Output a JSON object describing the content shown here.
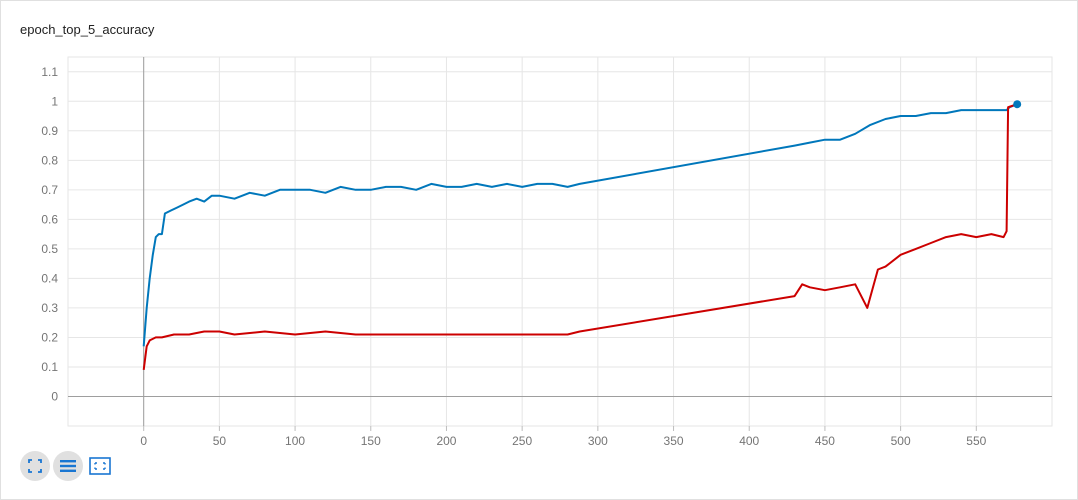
{
  "panel": {
    "title": "epoch_top_5_accuracy"
  },
  "chart_data": {
    "type": "line",
    "title": "epoch_top_5_accuracy",
    "xlabel": "",
    "ylabel": "",
    "xlim": [
      -50,
      600
    ],
    "ylim": [
      -0.1,
      1.15
    ],
    "x_ticks": [
      0,
      50,
      100,
      150,
      200,
      250,
      300,
      350,
      400,
      450,
      500,
      550
    ],
    "y_ticks": [
      0,
      0.1,
      0.2,
      0.3,
      0.4,
      0.5,
      0.6,
      0.7,
      0.8,
      0.9,
      1,
      1.1
    ],
    "x_tick_labels": [
      "0",
      "50",
      "100",
      "150",
      "200",
      "250",
      "300",
      "350",
      "400",
      "450",
      "500",
      "550"
    ],
    "y_tick_labels": [
      "0",
      "0.1",
      "0.2",
      "0.3",
      "0.4",
      "0.5",
      "0.6",
      "0.7",
      "0.8",
      "0.9",
      "1",
      "1.1"
    ],
    "grid": true,
    "series": [
      {
        "color": "#0077bb",
        "points": [
          [
            0,
            0.17
          ],
          [
            2,
            0.3
          ],
          [
            4,
            0.4
          ],
          [
            6,
            0.48
          ],
          [
            8,
            0.54
          ],
          [
            10,
            0.55
          ],
          [
            12,
            0.55
          ],
          [
            14,
            0.62
          ],
          [
            18,
            0.63
          ],
          [
            22,
            0.64
          ],
          [
            26,
            0.65
          ],
          [
            30,
            0.66
          ],
          [
            35,
            0.67
          ],
          [
            40,
            0.66
          ],
          [
            45,
            0.68
          ],
          [
            50,
            0.68
          ],
          [
            60,
            0.67
          ],
          [
            70,
            0.69
          ],
          [
            80,
            0.68
          ],
          [
            90,
            0.7
          ],
          [
            100,
            0.7
          ],
          [
            110,
            0.7
          ],
          [
            120,
            0.69
          ],
          [
            130,
            0.71
          ],
          [
            140,
            0.7
          ],
          [
            150,
            0.7
          ],
          [
            160,
            0.71
          ],
          [
            170,
            0.71
          ],
          [
            180,
            0.7
          ],
          [
            190,
            0.72
          ],
          [
            200,
            0.71
          ],
          [
            210,
            0.71
          ],
          [
            220,
            0.72
          ],
          [
            230,
            0.71
          ],
          [
            240,
            0.72
          ],
          [
            250,
            0.71
          ],
          [
            260,
            0.72
          ],
          [
            270,
            0.72
          ],
          [
            280,
            0.71
          ],
          [
            288,
            0.72
          ],
          [
            430,
            0.85
          ],
          [
            440,
            0.86
          ],
          [
            450,
            0.87
          ],
          [
            460,
            0.87
          ],
          [
            470,
            0.89
          ],
          [
            480,
            0.92
          ],
          [
            490,
            0.94
          ],
          [
            500,
            0.95
          ],
          [
            510,
            0.95
          ],
          [
            520,
            0.96
          ],
          [
            530,
            0.96
          ],
          [
            540,
            0.97
          ],
          [
            550,
            0.97
          ],
          [
            560,
            0.97
          ],
          [
            570,
            0.97
          ],
          [
            572,
            0.98
          ],
          [
            577,
            0.99
          ]
        ]
      },
      {
        "color": "#cc0000",
        "points": [
          [
            0,
            0.09
          ],
          [
            2,
            0.17
          ],
          [
            4,
            0.19
          ],
          [
            8,
            0.2
          ],
          [
            12,
            0.2
          ],
          [
            20,
            0.21
          ],
          [
            30,
            0.21
          ],
          [
            40,
            0.22
          ],
          [
            50,
            0.22
          ],
          [
            60,
            0.21
          ],
          [
            80,
            0.22
          ],
          [
            100,
            0.21
          ],
          [
            120,
            0.22
          ],
          [
            140,
            0.21
          ],
          [
            160,
            0.21
          ],
          [
            180,
            0.21
          ],
          [
            200,
            0.21
          ],
          [
            220,
            0.21
          ],
          [
            240,
            0.21
          ],
          [
            260,
            0.21
          ],
          [
            280,
            0.21
          ],
          [
            288,
            0.22
          ],
          [
            430,
            0.34
          ],
          [
            435,
            0.38
          ],
          [
            440,
            0.37
          ],
          [
            450,
            0.36
          ],
          [
            460,
            0.37
          ],
          [
            470,
            0.38
          ],
          [
            478,
            0.3
          ],
          [
            485,
            0.43
          ],
          [
            490,
            0.44
          ],
          [
            500,
            0.48
          ],
          [
            510,
            0.5
          ],
          [
            520,
            0.52
          ],
          [
            530,
            0.54
          ],
          [
            540,
            0.55
          ],
          [
            550,
            0.54
          ],
          [
            560,
            0.55
          ],
          [
            568,
            0.54
          ],
          [
            570,
            0.56
          ],
          [
            571,
            0.98
          ],
          [
            577,
            0.99
          ]
        ]
      }
    ]
  },
  "icons": {
    "fit": "fit-to-data-icon",
    "toggle_log": "toggle-y-log-icon",
    "reset": "reset-axes-icon"
  }
}
